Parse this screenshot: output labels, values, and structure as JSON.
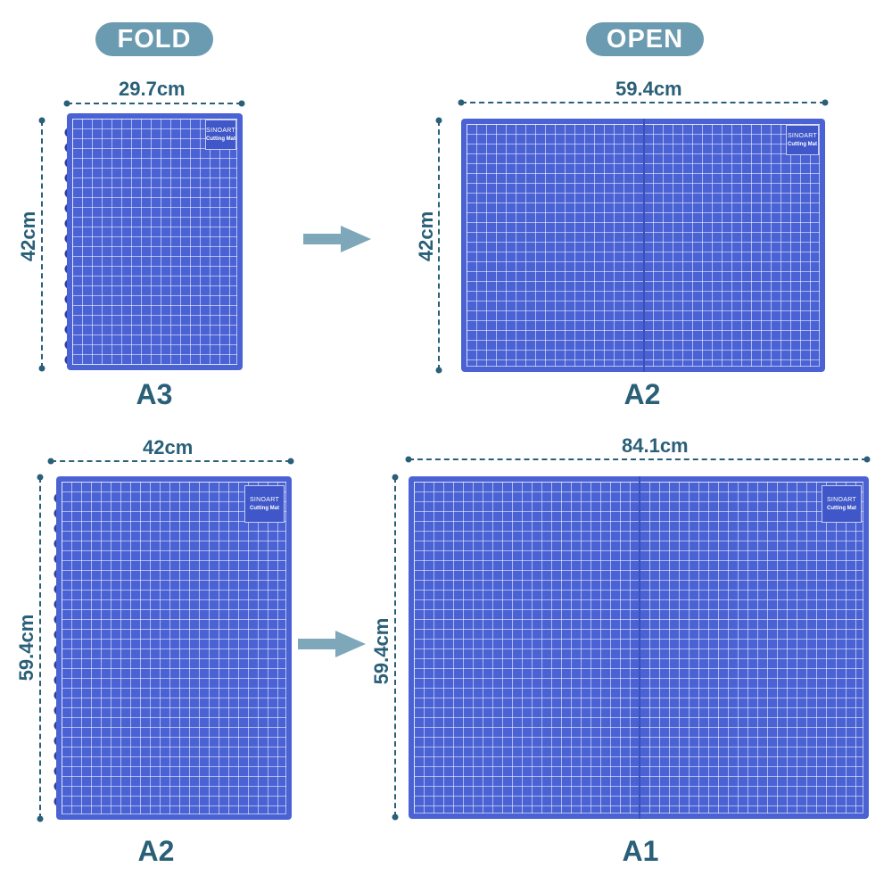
{
  "headers": {
    "fold": "FOLD",
    "open": "OPEN"
  },
  "brand": {
    "name": "SINOART",
    "product": "Cutting Mat"
  },
  "row1": {
    "fold": {
      "width": "29.7cm",
      "height": "42cm",
      "size": "A3"
    },
    "open": {
      "width": "59.4cm",
      "height": "42cm",
      "size": "A2"
    }
  },
  "row2": {
    "fold": {
      "width": "42cm",
      "height": "59.4cm",
      "size": "A2"
    },
    "open": {
      "width": "84.1cm",
      "height": "59.4cm",
      "size": "A1"
    }
  },
  "colors": {
    "mat": "#4a62d4",
    "pill": "#6b9bb0",
    "text": "#2a5f78",
    "arrow": "#7fa7ba"
  },
  "icons": {
    "arrow": "arrow-right-icon"
  }
}
